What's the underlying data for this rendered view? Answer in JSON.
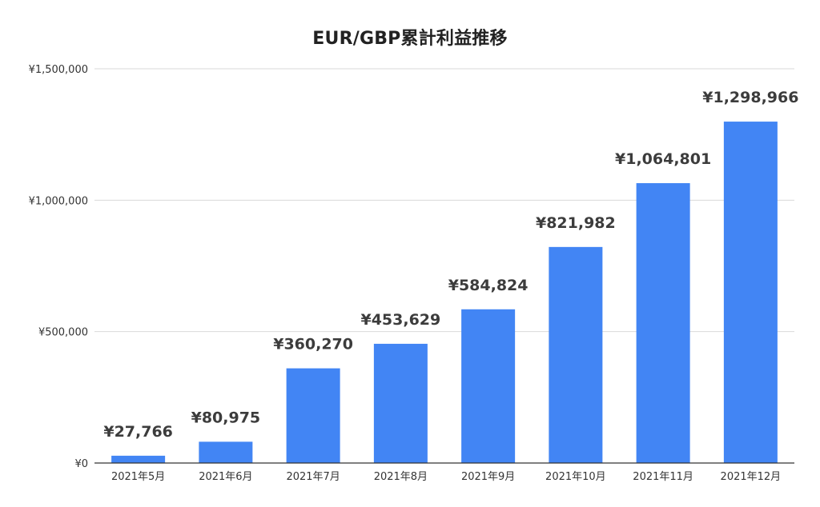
{
  "chart_data": {
    "type": "bar",
    "title": "EUR/GBP累計利益推移",
    "xlabel": "",
    "ylabel": "",
    "categories": [
      "2021年5月",
      "2021年6月",
      "2021年7月",
      "2021年8月",
      "2021年9月",
      "2021年10月",
      "2021年11月",
      "2021年12月"
    ],
    "values": [
      27766,
      80975,
      360270,
      453629,
      584824,
      821982,
      1064801,
      1298966
    ],
    "data_labels": [
      "¥27,766",
      "¥80,975",
      "¥360,270",
      "¥453,629",
      "¥584,824",
      "¥821,982",
      "¥1,064,801",
      "¥1,298,966"
    ],
    "ylim": [
      0,
      1500000
    ],
    "y_ticks": [
      0,
      500000,
      1000000,
      1500000
    ],
    "y_tick_labels": [
      "¥0",
      "¥500,000",
      "¥1,000,000",
      "¥1,500,000"
    ],
    "grid": true,
    "legend": "none",
    "colors": {
      "bar": "#4285f4",
      "grid": "#d9d9d9",
      "axis": "#333333"
    }
  }
}
